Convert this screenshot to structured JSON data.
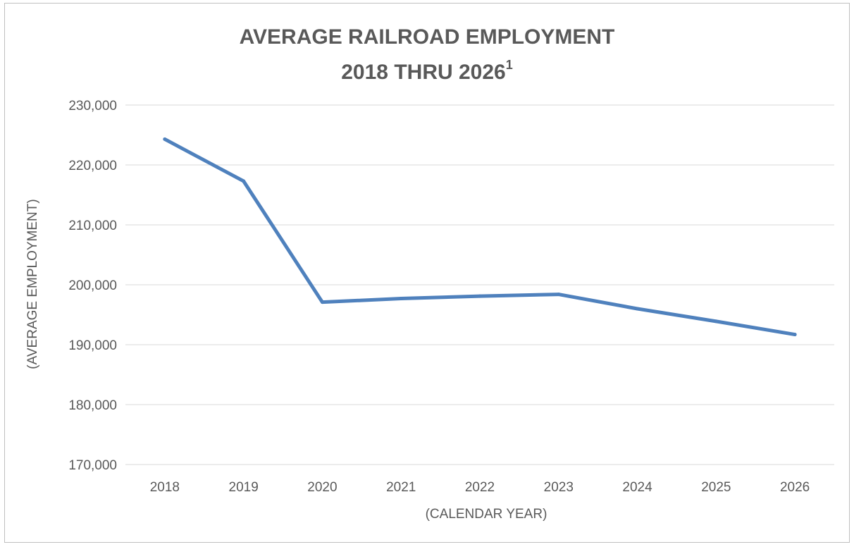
{
  "chart_data": {
    "type": "line",
    "title_line1": "AVERAGE RAILROAD EMPLOYMENT",
    "title_line2": "2018 THRU 2026",
    "title_superscript": "1",
    "xlabel": "(CALENDAR YEAR)",
    "ylabel": "(AVERAGE EMPLOYMENT)",
    "categories": [
      "2018",
      "2019",
      "2020",
      "2021",
      "2022",
      "2023",
      "2024",
      "2025",
      "2026"
    ],
    "series": [
      {
        "values": [
          224300,
          217300,
          197100,
          197700,
          198100,
          198400,
          196000,
          193900,
          191700
        ]
      }
    ],
    "ylim": [
      170000,
      230000
    ],
    "yticks": [
      170000,
      180000,
      190000,
      200000,
      210000,
      220000,
      230000
    ],
    "ytick_labels": [
      "170,000",
      "180,000",
      "190,000",
      "200,000",
      "210,000",
      "220,000",
      "230,000"
    ],
    "grid": true,
    "series_color": "#4f81bd"
  }
}
